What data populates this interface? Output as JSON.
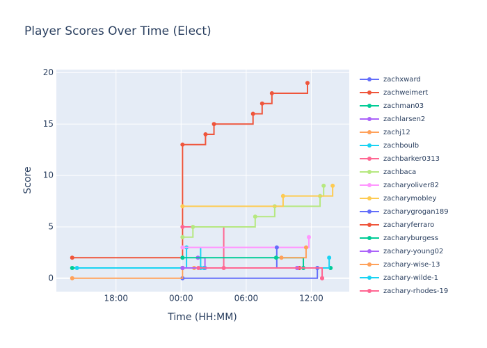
{
  "chart_data": {
    "type": "line",
    "line_shape": "hv",
    "title": "Player Scores Over Time (Elect)",
    "x_label": "Time (HH:MM)",
    "y_label": "Score",
    "xlim": [
      12.5,
      39.5
    ],
    "ylim": [
      -1.3,
      20.3
    ],
    "xticks": [
      {
        "value": 18,
        "label": "18:00"
      },
      {
        "value": 24,
        "label": "00:00"
      },
      {
        "value": 30,
        "label": "06:00"
      },
      {
        "value": 36,
        "label": "12:00"
      }
    ],
    "yticks": [
      0,
      5,
      10,
      15,
      20
    ],
    "grid": true,
    "series": [
      {
        "name": "zachxward",
        "color": "#636efa",
        "x": [
          24.13,
          36.56
        ],
        "values": [
          0,
          1
        ]
      },
      {
        "name": "zachweimert",
        "color": "#EF553B",
        "x": [
          13.96,
          24.13,
          26.25,
          27.03,
          30.63,
          31.47,
          32.37,
          35.65
        ],
        "values": [
          2,
          13,
          14,
          15,
          16,
          17,
          18,
          19
        ]
      },
      {
        "name": "zachman03",
        "color": "#00cc96",
        "x": [
          13.96,
          37.78
        ],
        "values": [
          1,
          1
        ]
      },
      {
        "name": "zachlarsen2",
        "color": "#ab63fa",
        "x": [
          25.55,
          26.2
        ],
        "values": [
          2,
          1
        ]
      },
      {
        "name": "zachj12",
        "color": "#FFA15A",
        "x": [
          13.96,
          24.13,
          25.2
        ],
        "values": [
          0,
          1,
          1
        ]
      },
      {
        "name": "zachboulb",
        "color": "#19d3f3",
        "x": [
          14.4,
          24.5,
          25.8
        ],
        "values": [
          1,
          3,
          1
        ]
      },
      {
        "name": "zachbarker0313",
        "color": "#FF6692",
        "x": [
          24.13,
          27.93,
          37.0
        ],
        "values": [
          5,
          1,
          0
        ]
      },
      {
        "name": "zachbaca",
        "color": "#B6E880",
        "x": [
          24.13,
          25.09,
          30.83,
          32.63,
          36.81,
          37.14
        ],
        "values": [
          4,
          5,
          6,
          7,
          8,
          9
        ]
      },
      {
        "name": "zacharyoliver82",
        "color": "#FF97FF",
        "x": [
          24.13,
          35.78
        ],
        "values": [
          3,
          4
        ]
      },
      {
        "name": "zacharymobley",
        "color": "#FECB52",
        "x": [
          24.13,
          33.4,
          37.97
        ],
        "values": [
          7,
          8,
          9
        ]
      },
      {
        "name": "zacharygrogan189",
        "color": "#636efa",
        "x": [
          24.13,
          32.82
        ],
        "values": [
          1,
          3
        ]
      },
      {
        "name": "zacharyferraro",
        "color": "#EF553B",
        "x": [
          24.13,
          34.9
        ],
        "values": [
          1,
          1
        ]
      },
      {
        "name": "zacharyburgess",
        "color": "#00cc96",
        "x": [
          24.13,
          32.76,
          35.27
        ],
        "values": [
          2,
          2,
          1
        ]
      },
      {
        "name": "zachary-young02",
        "color": "#ab63fa",
        "x": [
          24.13,
          34.69
        ],
        "values": [
          1,
          1
        ]
      },
      {
        "name": "zachary-wise-13",
        "color": "#FFA15A",
        "x": [
          33.25,
          35.52
        ],
        "values": [
          2,
          3
        ]
      },
      {
        "name": "zachary-wilde-1",
        "color": "#19d3f3",
        "x": [
          26.1,
          37.65
        ],
        "values": [
          1,
          2
        ]
      },
      {
        "name": "zachary-rhodes-19",
        "color": "#FF6692",
        "x": [
          25.6,
          37.0
        ],
        "values": [
          1,
          0
        ]
      }
    ]
  }
}
